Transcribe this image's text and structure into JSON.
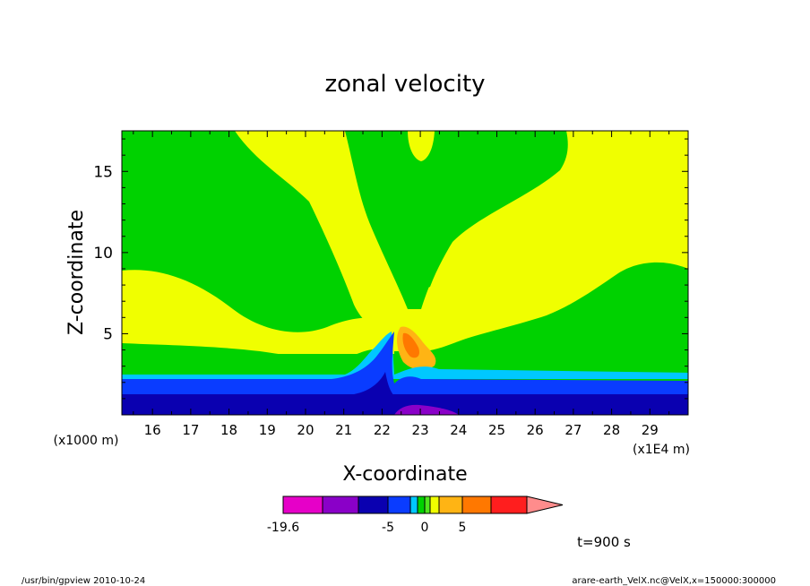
{
  "chart_data": {
    "type": "heatmap",
    "title": "zonal velocity",
    "xlabel": "X-coordinate",
    "ylabel": "Z-coordinate",
    "x_unit": "(x1E4 m)",
    "y_unit": "(x1000 m)",
    "xlim": [
      15.2,
      30.0
    ],
    "ylim": [
      0,
      17.5
    ],
    "x_ticks": [
      "16",
      "17",
      "18",
      "19",
      "20",
      "21",
      "22",
      "23",
      "24",
      "25",
      "26",
      "27",
      "28",
      "29"
    ],
    "y_ticks": [
      "5",
      "10",
      "15"
    ],
    "colorbar": {
      "colors": [
        "#e600c8",
        "#8a00c8",
        "#0a00b0",
        "#0a3cff",
        "#00c8ff",
        "#00d200",
        "#50e61e",
        "#f0ff00",
        "#ffb414",
        "#ff7800",
        "#ff1e1e",
        "#ff8c8c"
      ],
      "tick_labels": [
        "-19.6",
        "-5",
        "0",
        "5"
      ]
    },
    "annotation": "t=900 s"
  },
  "footer": {
    "left": "/usr/bin/gpview   2010-10-24",
    "right": "arare-earth_VelX.nc@VelX,x=150000:300000"
  }
}
